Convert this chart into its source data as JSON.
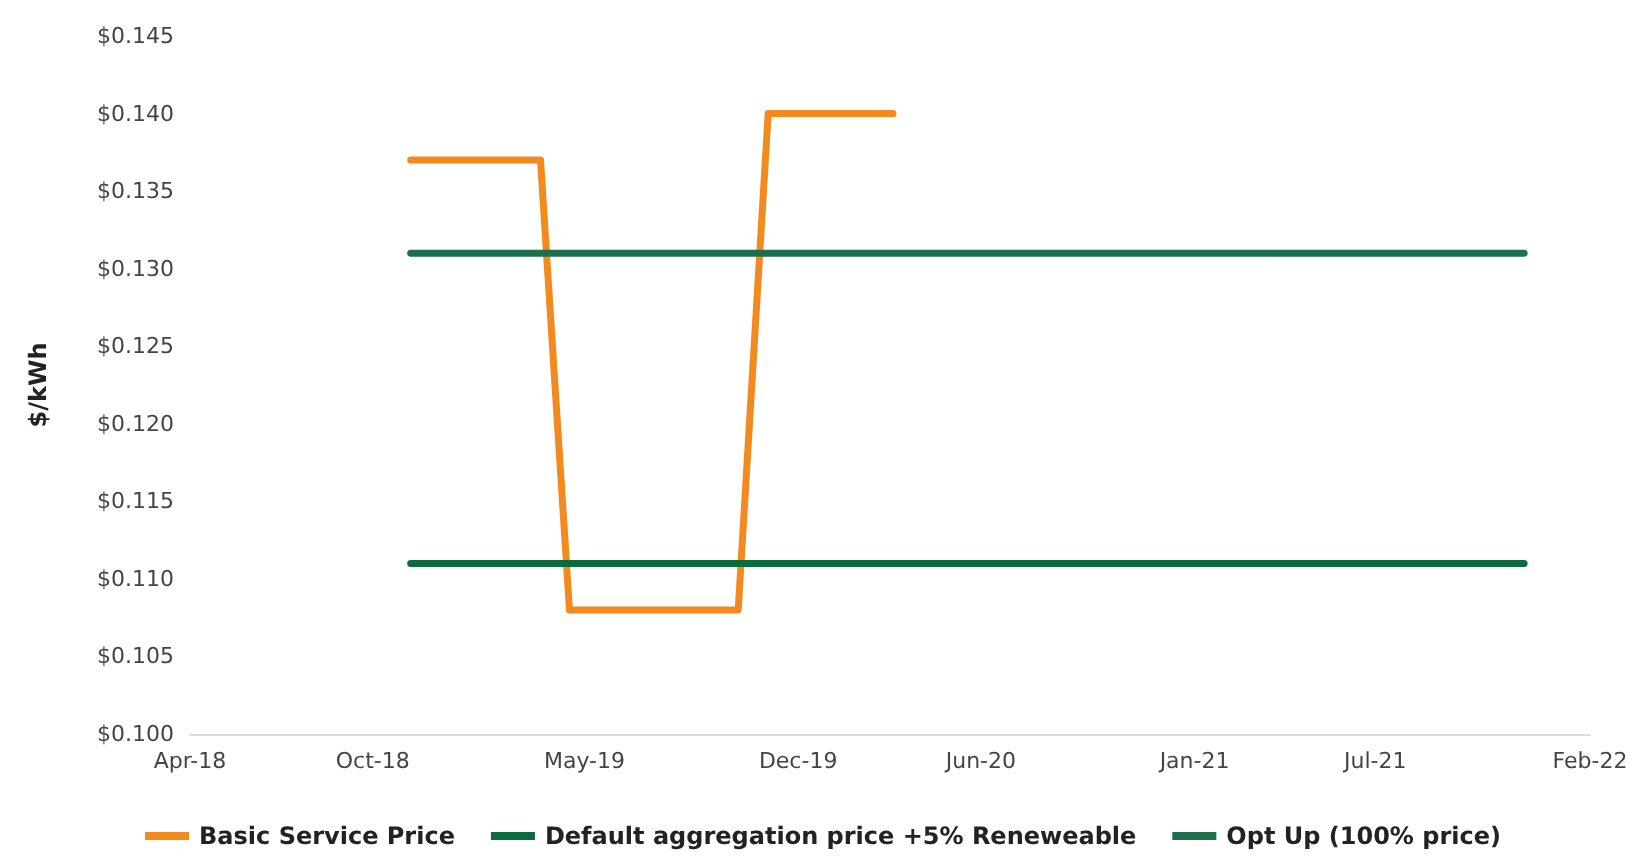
{
  "chart_data": {
    "type": "line",
    "ylabel": "$/kWh",
    "xlim": [
      "2018-04",
      "2022-02"
    ],
    "xticks": [
      {
        "value": "2018-04",
        "label": "Apr-18"
      },
      {
        "value": "2018-10",
        "label": "Oct-18"
      },
      {
        "value": "2019-05",
        "label": "May-19"
      },
      {
        "value": "2019-12",
        "label": "Dec-19"
      },
      {
        "value": "2020-06",
        "label": "Jun-20"
      },
      {
        "value": "2021-01",
        "label": "Jan-21"
      },
      {
        "value": "2021-07",
        "label": "Jul-21"
      },
      {
        "value": "2022-02",
        "label": "Feb-22"
      }
    ],
    "ylim": [
      0.1,
      0.145
    ],
    "yticks": [
      {
        "value": 0.1,
        "label": "$0.100"
      },
      {
        "value": 0.105,
        "label": "$0.105"
      },
      {
        "value": 0.11,
        "label": "$0.110"
      },
      {
        "value": 0.115,
        "label": "$0.115"
      },
      {
        "value": 0.12,
        "label": "$0.120"
      },
      {
        "value": 0.125,
        "label": "$0.125"
      },
      {
        "value": 0.13,
        "label": "$0.130"
      },
      {
        "value": 0.135,
        "label": "$0.135"
      },
      {
        "value": 0.14,
        "label": "$0.140"
      },
      {
        "value": 0.145,
        "label": "$0.145"
      }
    ],
    "series": [
      {
        "name": "Basic Service Price",
        "color": "#f28a1e",
        "x": [
          "2018-11-08",
          "2019-03-18",
          "2019-04-16",
          "2019-10-02",
          "2019-11-01",
          "2020-03-05"
        ],
        "values": [
          0.137,
          0.137,
          0.108,
          0.108,
          0.14,
          0.14
        ]
      },
      {
        "name": "Default aggregation price +5% Reneweable",
        "color": "#0b6b3a",
        "x": [
          "2018-11-08",
          "2021-11-27"
        ],
        "values": [
          0.111,
          0.111
        ]
      },
      {
        "name": "Opt Up (100% price)",
        "color": "#1d6f4c",
        "x": [
          "2018-11-08",
          "2021-11-27"
        ],
        "values": [
          0.131,
          0.131
        ]
      }
    ],
    "grid": false,
    "legend": "bottom",
    "marker": "none",
    "line_style": "solid"
  }
}
